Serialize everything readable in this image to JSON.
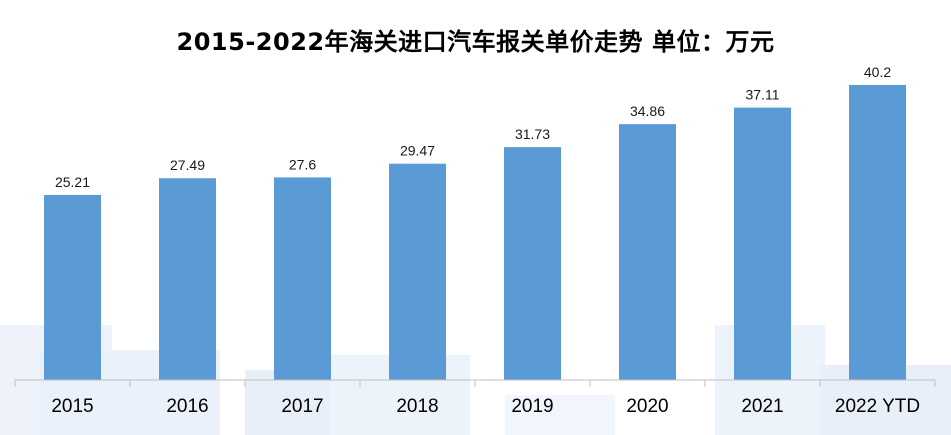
{
  "chart_data": {
    "type": "bar",
    "title": "2015-2022年海关进口汽车报关单价走势  单位：万元",
    "categories": [
      "2015",
      "2016",
      "2017",
      "2018",
      "2019",
      "2020",
      "2021",
      "2022 YTD"
    ],
    "values": [
      25.21,
      27.49,
      27.6,
      29.47,
      31.73,
      34.86,
      37.11,
      40.2
    ],
    "value_labels": [
      "25.21",
      "27.49",
      "27.6",
      "29.47",
      "31.73",
      "34.86",
      "37.11",
      "40.2"
    ],
    "xlabel": "",
    "ylabel": "",
    "ylim": [
      0,
      50
    ],
    "grid": false,
    "legend": "none",
    "bar_color": "#5b9bd5"
  }
}
